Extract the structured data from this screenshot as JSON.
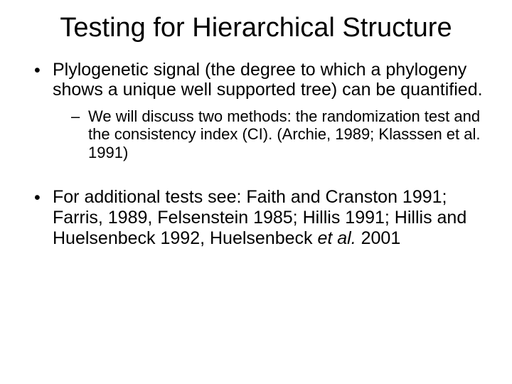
{
  "title": "Testing for Hierarchical Structure",
  "bullets": {
    "b1": "Plylogenetic signal (the degree to which a phylogeny shows a unique well supported tree) can be quantified.",
    "b1_sub1": "We will discuss two methods: the randomization test and the consistency index (CI). (Archie, 1989; Klasssen et al. 1991)",
    "b2_pre": "For additional tests see: Faith and Cranston 1991; Farris, 1989, Felsenstein 1985; Hillis 1991; Hillis and Huelsenbeck 1992, Huelsenbeck ",
    "b2_ital": "et al.",
    "b2_post": " 2001"
  },
  "colors": {
    "background": "#ffffff",
    "text": "#000000"
  },
  "typography": {
    "font_family": "Comic Sans MS",
    "title_fontsize": 38,
    "main_bullet_fontsize": 25,
    "sub_bullet_fontsize": 22
  }
}
